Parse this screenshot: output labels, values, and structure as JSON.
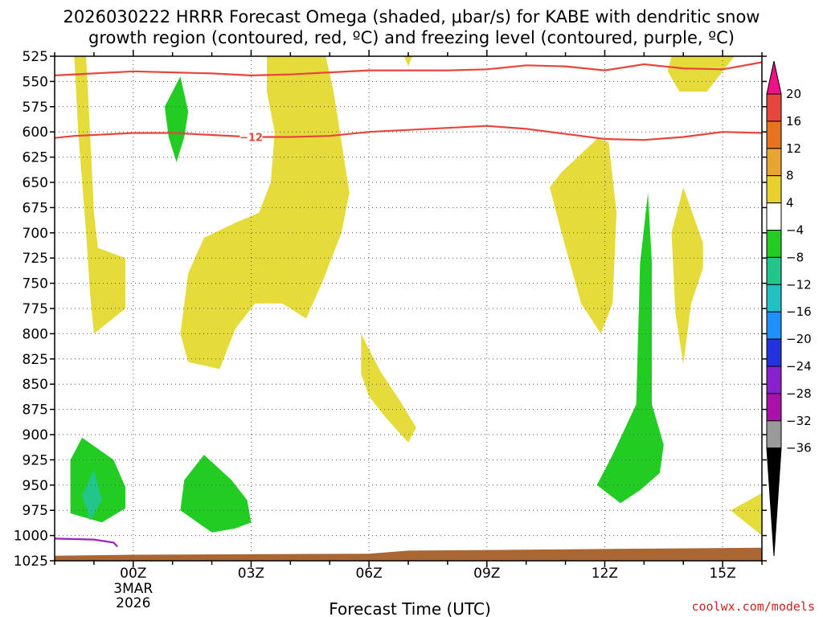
{
  "title_line1": "2026030222 HRRR Forecast Omega (shaded, μbar/s) for KABE with dendritic snow",
  "title_line2": "growth region (contoured, red, ºC) and freezing level (contoured, purple, ºC)",
  "credit": "coolwx.com/models",
  "chart_data": {
    "type": "time-height cross section",
    "xlabel": "Forecast Time (UTC)",
    "ylabel": "",
    "x_ticks": [
      {
        "label": "00Z",
        "sub1": "3MAR",
        "sub2": "2026",
        "hour": 0
      },
      {
        "label": "03Z",
        "hour": 3
      },
      {
        "label": "06Z",
        "hour": 6
      },
      {
        "label": "09Z",
        "hour": 9
      },
      {
        "label": "12Z",
        "hour": 12
      },
      {
        "label": "15Z",
        "hour": 15
      }
    ],
    "xlim": [
      -2,
      16
    ],
    "y_ticks": [
      "525",
      "550",
      "575",
      "600",
      "625",
      "650",
      "675",
      "700",
      "725",
      "750",
      "775",
      "800",
      "825",
      "850",
      "875",
      "900",
      "925",
      "950",
      "975",
      "1000",
      "1025"
    ],
    "ylim": [
      525,
      1025
    ],
    "grid": true,
    "colorbar": {
      "levels": [
        "20",
        "16",
        "12",
        "8",
        "4",
        "−4",
        "−8",
        "−12",
        "−16",
        "−20",
        "−24",
        "−28",
        "−32",
        "−36"
      ],
      "colors": [
        "#e8453c",
        "#e8731e",
        "#e8a532",
        "#e8d02e",
        "#ffffff",
        "#22cc22",
        "#22c58a",
        "#22c0c0",
        "#1e90ff",
        "#2233dd",
        "#8822cc",
        "#aa11aa",
        "#9a9a9a"
      ],
      "top_arrow": "#ee1188",
      "bottom_arrow": "#000000"
    },
    "contour_label": "−12",
    "contours": [
      {
        "name": "−12",
        "color": "#e8453c",
        "points": [
          [
            -2,
            606
          ],
          [
            -1.5,
            604
          ],
          [
            -1,
            603
          ],
          [
            0,
            601
          ],
          [
            1,
            601
          ],
          [
            2,
            603
          ],
          [
            3,
            605
          ],
          [
            4,
            605
          ],
          [
            5,
            604
          ],
          [
            6,
            600
          ],
          [
            7,
            598
          ],
          [
            8,
            596
          ],
          [
            9,
            594
          ],
          [
            10,
            597
          ],
          [
            11,
            602
          ],
          [
            12,
            607
          ],
          [
            13,
            608
          ],
          [
            14,
            605
          ],
          [
            15,
            600
          ],
          [
            16,
            601
          ]
        ]
      },
      {
        "name": "dgz-top",
        "color": "#e8453c",
        "points": [
          [
            -2,
            544
          ],
          [
            -1,
            542
          ],
          [
            0,
            540
          ],
          [
            1,
            541
          ],
          [
            2,
            542
          ],
          [
            3,
            544
          ],
          [
            4,
            543
          ],
          [
            5,
            541
          ],
          [
            6,
            539
          ],
          [
            7,
            539
          ],
          [
            8,
            539
          ],
          [
            9,
            538
          ],
          [
            10,
            534
          ],
          [
            11,
            535
          ],
          [
            12,
            539
          ],
          [
            13,
            533
          ],
          [
            14,
            537
          ],
          [
            15,
            538
          ],
          [
            16,
            531
          ]
        ]
      },
      {
        "name": "freezing-level",
        "color": "#9922bb",
        "points": [
          [
            -2,
            1003
          ],
          [
            -1,
            1004
          ],
          [
            -0.5,
            1007
          ],
          [
            -0.4,
            1011
          ]
        ]
      }
    ],
    "shaded_regions": [
      {
        "name": "omega-pos-west",
        "color": "#e5dc3c",
        "points": [
          [
            -1.5,
            525
          ],
          [
            -1.2,
            525
          ],
          [
            -1.1,
            600
          ],
          [
            -1,
            680
          ],
          [
            -0.9,
            715
          ],
          [
            -0.2,
            725
          ],
          [
            -0.2,
            775
          ],
          [
            -1,
            800
          ],
          [
            -1.1,
            760
          ],
          [
            -1.2,
            700
          ],
          [
            -1.4,
            600
          ]
        ]
      },
      {
        "name": "omega-pos-big",
        "color": "#e5dc3c",
        "points": [
          [
            3.4,
            525
          ],
          [
            4.9,
            525
          ],
          [
            5.1,
            560
          ],
          [
            5.3,
            610
          ],
          [
            5.5,
            660
          ],
          [
            5.3,
            700
          ],
          [
            4.8,
            750
          ],
          [
            4.4,
            785
          ],
          [
            3.8,
            770
          ],
          [
            3.1,
            770
          ],
          [
            2.6,
            795
          ],
          [
            2.2,
            835
          ],
          [
            1.4,
            828
          ],
          [
            1.2,
            800
          ],
          [
            1.4,
            740
          ],
          [
            1.8,
            705
          ],
          [
            2.6,
            690
          ],
          [
            3.2,
            680
          ],
          [
            3.5,
            650
          ],
          [
            3.6,
            600
          ],
          [
            3.4,
            560
          ]
        ]
      },
      {
        "name": "omega-pos-small-top",
        "color": "#e5dc3c",
        "points": [
          [
            6.9,
            525
          ],
          [
            7.1,
            525
          ],
          [
            7.0,
            535
          ]
        ]
      },
      {
        "name": "omega-pos-mid",
        "color": "#e5dc3c",
        "points": [
          [
            5.8,
            800
          ],
          [
            6.3,
            838
          ],
          [
            6.8,
            867
          ],
          [
            7.2,
            893
          ],
          [
            7.0,
            908
          ],
          [
            6.4,
            882
          ],
          [
            6.0,
            862
          ],
          [
            5.8,
            840
          ]
        ]
      },
      {
        "name": "omega-pos-right1",
        "color": "#e5dc3c",
        "points": [
          [
            11.8,
            607
          ],
          [
            12.1,
            610
          ],
          [
            12.3,
            680
          ],
          [
            12.2,
            770
          ],
          [
            11.9,
            800
          ],
          [
            11.4,
            770
          ],
          [
            10.9,
            700
          ],
          [
            10.6,
            655
          ],
          [
            10.9,
            640
          ]
        ]
      },
      {
        "name": "omega-pos-right2",
        "color": "#e5dc3c",
        "points": [
          [
            14,
            655
          ],
          [
            14.5,
            710
          ],
          [
            14.5,
            735
          ],
          [
            14.2,
            770
          ],
          [
            14,
            830
          ],
          [
            13.8,
            780
          ],
          [
            13.7,
            700
          ]
        ]
      },
      {
        "name": "omega-pos-topright",
        "color": "#e5dc3c",
        "points": [
          [
            13.7,
            525
          ],
          [
            15.3,
            525
          ],
          [
            14.9,
            545
          ],
          [
            14.6,
            560
          ],
          [
            13.9,
            560
          ],
          [
            13.6,
            540
          ]
        ]
      },
      {
        "name": "omega-pos-bottomright",
        "color": "#e5dc3c",
        "points": [
          [
            16,
            958
          ],
          [
            16,
            1000
          ],
          [
            15.2,
            975
          ]
        ]
      },
      {
        "name": "omega-neg-1",
        "color": "#22cc22",
        "points": [
          [
            -1.3,
            903
          ],
          [
            -0.5,
            925
          ],
          [
            -0.2,
            952
          ],
          [
            -0.2,
            973
          ],
          [
            -0.8,
            987
          ],
          [
            -1.6,
            978
          ],
          [
            -1.6,
            925
          ]
        ]
      },
      {
        "name": "omega-neg-1-core",
        "color": "#22c58a",
        "points": [
          [
            -1.0,
            935
          ],
          [
            -0.8,
            965
          ],
          [
            -1.1,
            985
          ],
          [
            -1.3,
            960
          ]
        ]
      },
      {
        "name": "omega-neg-2",
        "color": "#22cc22",
        "points": [
          [
            1.8,
            920
          ],
          [
            2.5,
            945
          ],
          [
            2.9,
            965
          ],
          [
            3.0,
            987
          ],
          [
            2.6,
            993
          ],
          [
            2.0,
            997
          ],
          [
            1.2,
            975
          ],
          [
            1.3,
            945
          ]
        ]
      },
      {
        "name": "omega-neg-3",
        "color": "#22cc22",
        "points": [
          [
            1.2,
            545
          ],
          [
            1.4,
            580
          ],
          [
            1.3,
            605
          ],
          [
            1.1,
            630
          ],
          [
            0.9,
            605
          ],
          [
            0.8,
            575
          ]
        ]
      },
      {
        "name": "omega-neg-4",
        "color": "#22cc22",
        "points": [
          [
            13.1,
            660
          ],
          [
            13.2,
            730
          ],
          [
            13.2,
            870
          ],
          [
            13.5,
            910
          ],
          [
            13.4,
            938
          ],
          [
            12.9,
            955
          ],
          [
            12.4,
            968
          ],
          [
            11.8,
            950
          ],
          [
            12.2,
            920
          ],
          [
            12.8,
            870
          ],
          [
            12.9,
            730
          ]
        ]
      }
    ],
    "surface_color": "#aa6633",
    "surface": [
      [
        -2,
        1020
      ],
      [
        0,
        1019
      ],
      [
        6,
        1018
      ],
      [
        7,
        1015
      ],
      [
        16,
        1012
      ]
    ]
  }
}
